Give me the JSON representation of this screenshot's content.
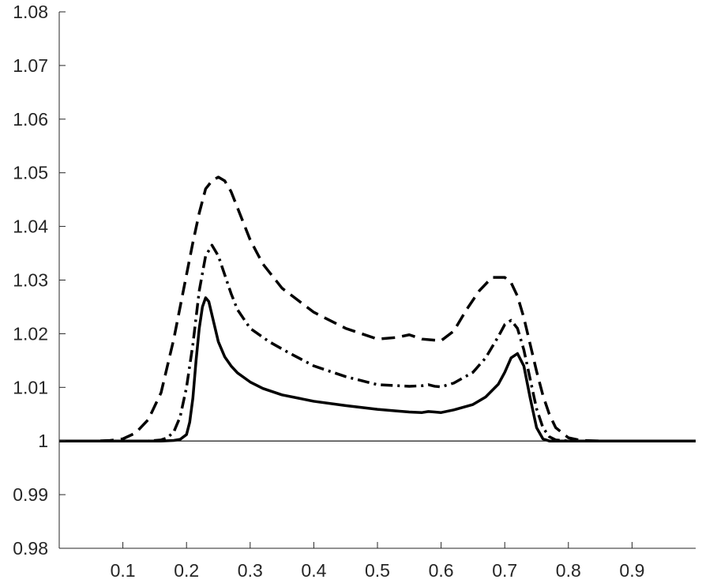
{
  "chart_data": {
    "type": "line",
    "title": "",
    "xlabel": "",
    "ylabel": "",
    "xlim": [
      0,
      1
    ],
    "ylim": [
      0.98,
      1.08
    ],
    "xticks": [
      0.1,
      0.2,
      0.3,
      0.4,
      0.5,
      0.6,
      0.7,
      0.8,
      0.9
    ],
    "xtick_labels": [
      "0.1",
      "0.2",
      "0.3",
      "0.4",
      "0.5",
      "0.6",
      "0.7",
      "0.8",
      "0.9"
    ],
    "yticks": [
      0.98,
      0.99,
      1.0,
      1.01,
      1.02,
      1.03,
      1.04,
      1.05,
      1.06,
      1.07,
      1.08
    ],
    "ytick_labels": [
      "0.98",
      "0.99",
      "1",
      "1.01",
      "1.02",
      "1.03",
      "1.04",
      "1.05",
      "1.06",
      "1.07",
      "1.08"
    ],
    "grid": false,
    "legend": "none",
    "reference_line": {
      "y": 1.0
    },
    "series": [
      {
        "style": "solid",
        "color": "#000000",
        "x": [
          0.0,
          0.16,
          0.18,
          0.19,
          0.2,
          0.205,
          0.21,
          0.215,
          0.22,
          0.225,
          0.23,
          0.235,
          0.24,
          0.25,
          0.26,
          0.27,
          0.28,
          0.3,
          0.32,
          0.35,
          0.4,
          0.45,
          0.5,
          0.55,
          0.57,
          0.58,
          0.59,
          0.6,
          0.62,
          0.65,
          0.67,
          0.69,
          0.7,
          0.71,
          0.72,
          0.73,
          0.74,
          0.75,
          0.76,
          0.77,
          0.8,
          1.0
        ],
        "y": [
          1.0,
          1.0,
          1.0001,
          1.0003,
          1.0012,
          1.0035,
          1.008,
          1.015,
          1.021,
          1.025,
          1.0267,
          1.026,
          1.0235,
          1.0185,
          1.0157,
          1.014,
          1.0127,
          1.011,
          1.0098,
          1.0086,
          1.0074,
          1.0066,
          1.0059,
          1.0054,
          1.0053,
          1.0055,
          1.0054,
          1.0053,
          1.0058,
          1.0068,
          1.0082,
          1.0106,
          1.0128,
          1.0155,
          1.0163,
          1.014,
          1.008,
          1.0025,
          1.0004,
          1.0,
          1.0,
          1.0
        ]
      },
      {
        "style": "dashdot",
        "color": "#000000",
        "x": [
          0.0,
          0.14,
          0.16,
          0.17,
          0.18,
          0.19,
          0.2,
          0.21,
          0.22,
          0.23,
          0.24,
          0.25,
          0.26,
          0.27,
          0.28,
          0.3,
          0.33,
          0.36,
          0.4,
          0.45,
          0.5,
          0.55,
          0.57,
          0.58,
          0.59,
          0.6,
          0.62,
          0.65,
          0.67,
          0.69,
          0.7,
          0.71,
          0.72,
          0.73,
          0.74,
          0.75,
          0.76,
          0.77,
          0.78,
          0.8,
          1.0
        ],
        "y": [
          1.0,
          1.0,
          1.0002,
          1.0006,
          1.0017,
          1.0045,
          1.01,
          1.018,
          1.028,
          1.0345,
          1.0365,
          1.0345,
          1.031,
          1.0275,
          1.0245,
          1.021,
          1.0185,
          1.0165,
          1.014,
          1.012,
          1.0105,
          1.0102,
          1.0103,
          1.0105,
          1.0102,
          1.0101,
          1.0108,
          1.0128,
          1.0155,
          1.0195,
          1.0217,
          1.0225,
          1.021,
          1.017,
          1.0115,
          1.006,
          1.0025,
          1.0008,
          1.0002,
          1.0,
          1.0
        ]
      },
      {
        "style": "dashed",
        "color": "#000000",
        "x": [
          0.0,
          0.06,
          0.08,
          0.1,
          0.12,
          0.14,
          0.16,
          0.18,
          0.2,
          0.21,
          0.22,
          0.23,
          0.24,
          0.25,
          0.26,
          0.27,
          0.28,
          0.3,
          0.32,
          0.35,
          0.4,
          0.45,
          0.5,
          0.53,
          0.55,
          0.57,
          0.6,
          0.62,
          0.64,
          0.66,
          0.68,
          0.7,
          0.71,
          0.72,
          0.73,
          0.74,
          0.75,
          0.76,
          0.77,
          0.78,
          0.8,
          0.82,
          0.85,
          0.9,
          1.0
        ],
        "y": [
          1.0,
          1.0,
          1.0001,
          1.0004,
          1.0015,
          1.004,
          1.009,
          1.019,
          1.031,
          1.037,
          1.0425,
          1.047,
          1.0485,
          1.0492,
          1.0485,
          1.0465,
          1.0435,
          1.0375,
          1.033,
          1.0285,
          1.024,
          1.021,
          1.019,
          1.0193,
          1.0198,
          1.019,
          1.0187,
          1.0205,
          1.0245,
          1.028,
          1.0305,
          1.0305,
          1.0295,
          1.027,
          1.023,
          1.018,
          1.013,
          1.0085,
          1.005,
          1.0025,
          1.0006,
          1.0001,
          1.0,
          1.0,
          1.0
        ]
      }
    ]
  }
}
